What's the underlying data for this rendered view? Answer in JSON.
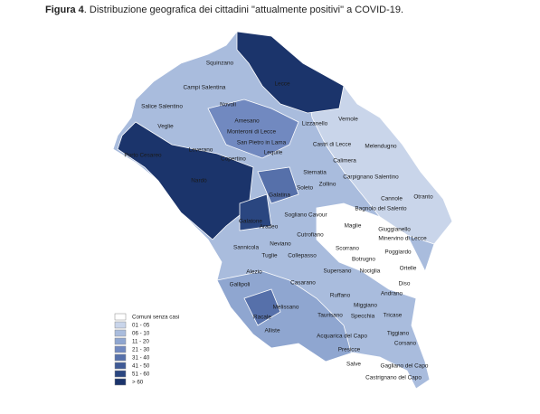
{
  "title": {
    "label": "Figura 4",
    "text": ". Distribuzione  geografica dei cittadini \"attualmente positivi\" a COVID-19."
  },
  "places": [
    "Squinzano",
    "Lecce",
    "Campi Salentina",
    "Novoli",
    "Salice Salentino",
    "Vernole",
    "Arnesano",
    "Lizzanello",
    "Veglie",
    "Monteroni di Lecce",
    "Leverano",
    "San Pietro in Lama",
    "Castri di Lecce",
    "Melendugno",
    "Lequile",
    "Porto Cesareo",
    "Copertino",
    "Calimera",
    "Sternatia",
    "Carpignano Salentino",
    "Nardò",
    "Zollino",
    "Soleto",
    "Galatina",
    "Cannole",
    "Otranto",
    "Bagnolo del Salento",
    "Sogliano Cavour",
    "Aradeo",
    "Maglie",
    "Galatone",
    "Giuggianello",
    "Minervino di Lecce",
    "Sannicola",
    "Neviano",
    "Cutrofiano",
    "Poggiardo",
    "Scorrano",
    "Tuglie",
    "Collepasso",
    "Botrugno",
    "Alezio",
    "Supersano",
    "Nociglia",
    "Ortelle",
    "Gallipoli",
    "Casarano",
    "Diso",
    "Andrano",
    "Ruffano",
    "Miggiano",
    "Melissano",
    "Racale",
    "Taurisano",
    "Specchia",
    "Tricase",
    "Alliste",
    "Acquarica del Capo",
    "Tiggiano",
    "Corsano",
    "Presicce",
    "Salve",
    "Gagliano del Capo",
    "Castrignano del Capo"
  ],
  "legend": [
    {
      "label": "Comuni senza casi",
      "color": "#ffffff"
    },
    {
      "label": "01 - 05",
      "color": "#c9d5ea"
    },
    {
      "label": "06 - 10",
      "color": "#a9bcdd"
    },
    {
      "label": "11 - 20",
      "color": "#8fa6d0"
    },
    {
      "label": "21 - 30",
      "color": "#7189c0"
    },
    {
      "label": "31 - 40",
      "color": "#5670aa"
    },
    {
      "label": "41 - 50",
      "color": "#3f5a96"
    },
    {
      "label": "51 - 60",
      "color": "#2a4680"
    },
    {
      "label": "> 60",
      "color": "#1b346b"
    }
  ]
}
